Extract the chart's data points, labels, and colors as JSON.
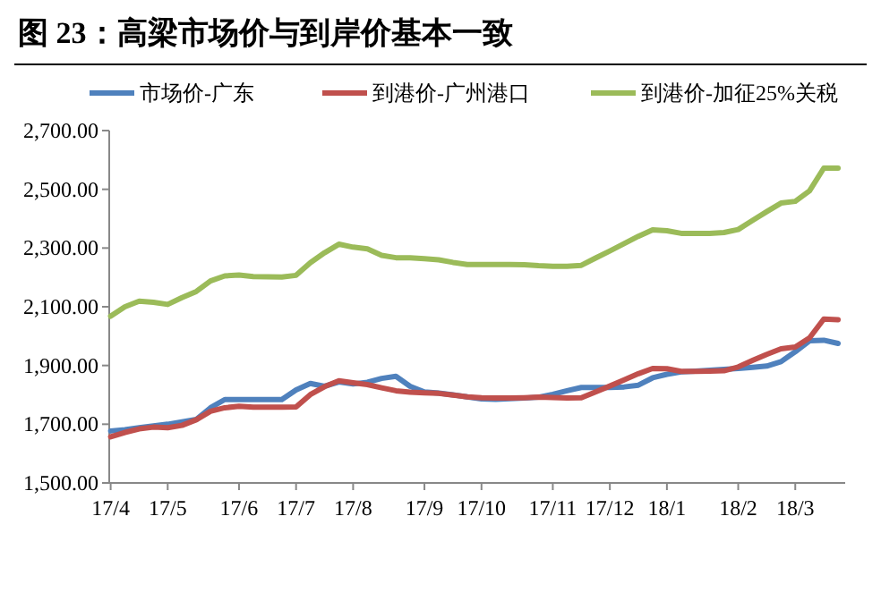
{
  "chart_data": {
    "type": "line",
    "title": "图 23：高梁市场价与到岸价基本一致",
    "legend": "top",
    "grid": false,
    "marker": "none",
    "line_style": "solid",
    "categories": [
      "17/4",
      null,
      null,
      null,
      "17/5",
      null,
      null,
      null,
      null,
      "17/6",
      null,
      null,
      null,
      "17/7",
      null,
      null,
      null,
      "17/8",
      null,
      null,
      null,
      null,
      "17/9",
      null,
      null,
      null,
      "17/10",
      null,
      null,
      null,
      null,
      "17/11",
      null,
      null,
      null,
      "17/12",
      null,
      null,
      null,
      "18/1",
      null,
      null,
      null,
      null,
      "18/2",
      null,
      null,
      null,
      "18/3",
      null,
      null,
      null
    ],
    "ylim": [
      1500,
      2700
    ],
    "yticks": [
      {
        "value": 1500,
        "label": "1,500.00"
      },
      {
        "value": 1700,
        "label": "1,700.00"
      },
      {
        "value": 1900,
        "label": "1,900.00"
      },
      {
        "value": 2100,
        "label": "2,100.00"
      },
      {
        "value": 2300,
        "label": "2,300.00"
      },
      {
        "value": 2500,
        "label": "2,500.00"
      },
      {
        "value": 2700,
        "label": "2,700.00"
      }
    ],
    "series": [
      {
        "name": "市场价-广东",
        "color": "#4f81bd",
        "values": [
          1677,
          1681,
          1688,
          1694,
          1700,
          1708,
          1716,
          1756,
          1784,
          1784,
          1784,
          1784,
          1784,
          1817,
          1839,
          1829,
          1844,
          1837,
          1843,
          1856,
          1863,
          1829,
          1810,
          1806,
          1800,
          1793,
          1786,
          1785,
          1787,
          1789,
          1792,
          1802,
          1814,
          1825,
          1825,
          1825,
          1827,
          1833,
          1858,
          1870,
          1878,
          1881,
          1884,
          1887,
          1890,
          1894,
          1898,
          1913,
          1947,
          1984,
          1986,
          1975
        ]
      },
      {
        "name": "到港价-广州港口",
        "color": "#c0504d",
        "values": [
          1657,
          1672,
          1684,
          1690,
          1688,
          1696,
          1715,
          1744,
          1756,
          1761,
          1758,
          1758,
          1758,
          1759,
          1801,
          1828,
          1848,
          1841,
          1835,
          1824,
          1814,
          1809,
          1807,
          1805,
          1799,
          1793,
          1790,
          1789,
          1789,
          1790,
          1792,
          1791,
          1789,
          1790,
          1810,
          1830,
          1851,
          1872,
          1890,
          1889,
          1880,
          1880,
          1881,
          1882,
          1895,
          1917,
          1938,
          1957,
          1963,
          1994,
          2058,
          2056
        ]
      },
      {
        "name": "到港价-加征25%关税",
        "color": "#9bbb59",
        "values": [
          2068,
          2100,
          2119,
          2115,
          2108,
          2131,
          2152,
          2188,
          2205,
          2208,
          2203,
          2202,
          2201,
          2207,
          2250,
          2284,
          2313,
          2303,
          2297,
          2275,
          2267,
          2267,
          2264,
          2260,
          2251,
          2244,
          2244,
          2244,
          2244,
          2243,
          2240,
          2238,
          2238,
          2241,
          2266,
          2290,
          2315,
          2340,
          2362,
          2359,
          2350,
          2350,
          2350,
          2353,
          2363,
          2394,
          2424,
          2453,
          2459,
          2495,
          2572,
          2572
        ]
      }
    ]
  }
}
